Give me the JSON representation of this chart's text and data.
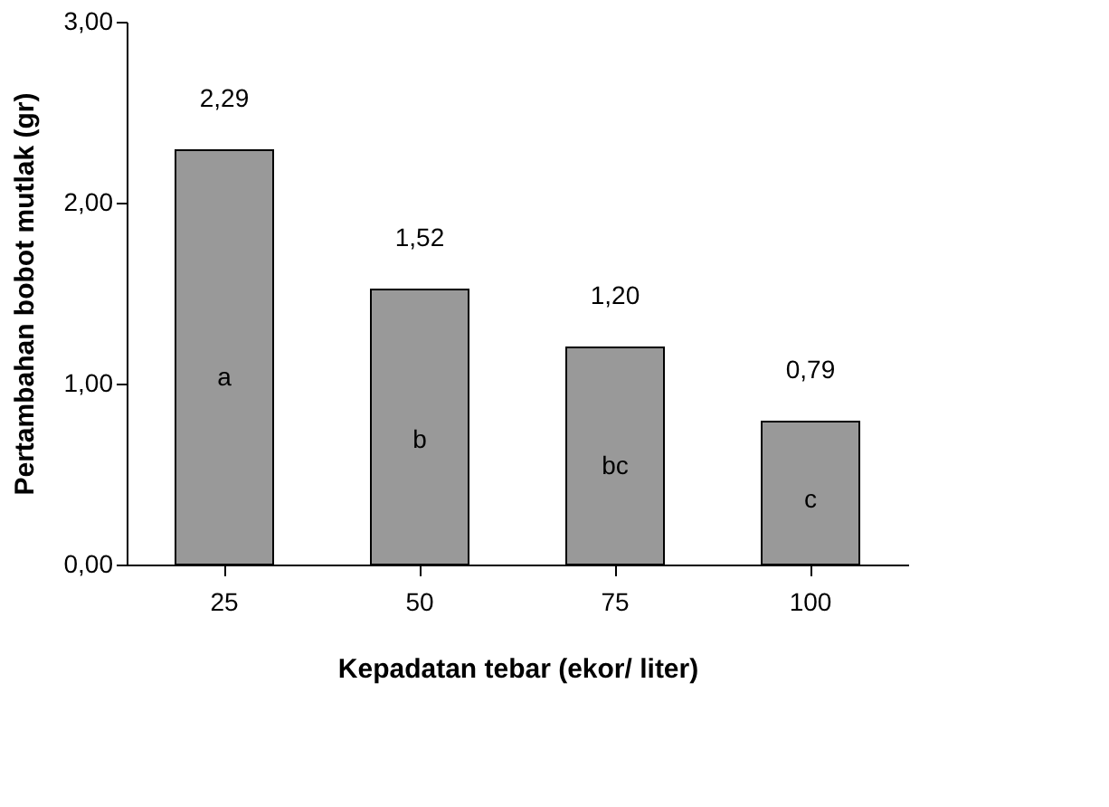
{
  "chart_data": {
    "type": "bar",
    "xlabel": "Kepadatan tebar (ekor/ liter)",
    "ylabel": "Pertambahan bobot  mutlak (gr)",
    "categories": [
      "25",
      "50",
      "75",
      "100"
    ],
    "values": [
      2.29,
      1.52,
      1.2,
      0.79
    ],
    "value_labels": [
      "2,29",
      "1,52",
      "1,20",
      "0,79"
    ],
    "color": "#999999",
    "ylim": [
      0,
      3
    ],
    "yticks": [
      {
        "value": 0,
        "label": "0,00"
      },
      {
        "value": 1,
        "label": "1,00"
      },
      {
        "value": 2,
        "label": "2,00"
      },
      {
        "value": 3,
        "label": "3,00"
      }
    ],
    "grid": false,
    "annotations": [
      "a",
      "b",
      "bc",
      "c"
    ]
  }
}
